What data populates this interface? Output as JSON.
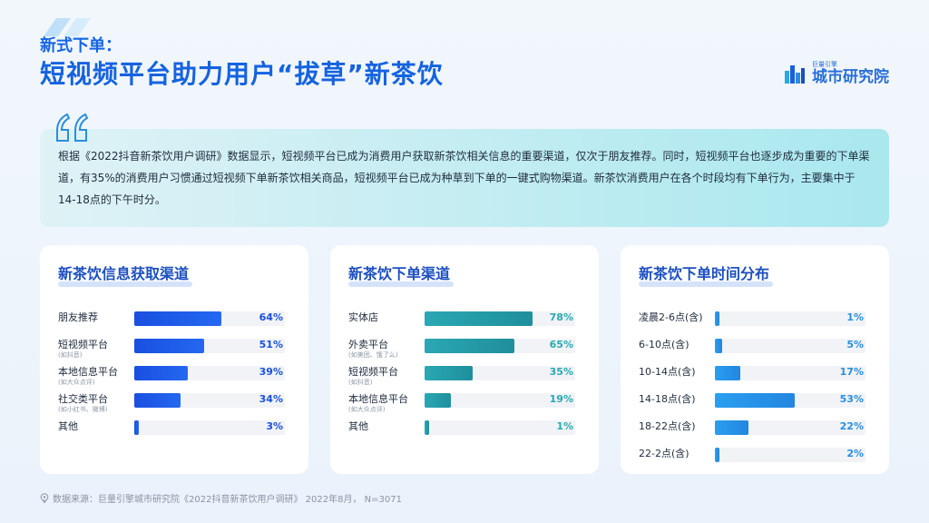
{
  "header": {
    "subtitle": "新式下单：",
    "title": "短视频平台助力用户“拔草”新茶饮"
  },
  "logo": {
    "sub": "巨量引擎",
    "main": "城市研究院"
  },
  "summary": {
    "text": "根据《2022抖音新茶饮用户调研》数据显示，短视频平台已成为消费用户获取新茶饮相关信息的重要渠道，仅次于朋友推荐。同时，短视频平台也逐步成为重要的下单渠道，有35%的消费用户习惯通过短视频下单新茶饮相关商品，短视频平台已成为种草到下单的一键式购物渠道。新茶饮消费用户在各个时段均有下单行为，主要集中于14-18点的下午时分。"
  },
  "colors": {
    "blue": "#1a4fe0",
    "teal": "#2aa8b3",
    "sky": "#2a9ef0",
    "blue_text": "#1a4fe0",
    "teal_text": "#2aa8b3",
    "sky_text": "#2a8ee0"
  },
  "chart_data": [
    {
      "type": "bar",
      "title": "新茶饮信息获取渠道",
      "orientation": "horizontal",
      "unit": "%",
      "xlim": [
        0,
        100
      ],
      "categories": [
        "朋友推荐",
        "短视频平台",
        "本地信息平台",
        "社交类平台",
        "其他"
      ],
      "notes": [
        "",
        "(如抖音)",
        "(如大众点评)",
        "(如小红书、微博)",
        ""
      ],
      "values": [
        64,
        51,
        39,
        34,
        3
      ],
      "labels": [
        "64%",
        "51%",
        "39%",
        "34%",
        "3%"
      ]
    },
    {
      "type": "bar",
      "title": "新茶饮下单渠道",
      "orientation": "horizontal",
      "unit": "%",
      "xlim": [
        0,
        100
      ],
      "categories": [
        "实体店",
        "外卖平台",
        "短视频平台",
        "本地信息平台",
        "其他"
      ],
      "notes": [
        "",
        "(如美团、饿了么)",
        "(如抖音)",
        "(如大众点评)",
        ""
      ],
      "values": [
        78,
        65,
        35,
        19,
        1
      ],
      "labels": [
        "78%",
        "65%",
        "35%",
        "19%",
        "1%"
      ]
    },
    {
      "type": "bar",
      "title": "新茶饮下单时间分布",
      "orientation": "horizontal",
      "unit": "%",
      "xlim": [
        0,
        100
      ],
      "categories": [
        "凌晨2-6点(含)",
        "6-10点(含)",
        "10-14点(含)",
        "14-18点(含)",
        "18-22点(含)",
        "22-2点(含)"
      ],
      "notes": [
        "",
        "",
        "",
        "",
        "",
        ""
      ],
      "values": [
        1,
        5,
        17,
        53,
        22,
        2
      ],
      "labels": [
        "1%",
        "5%",
        "17%",
        "53%",
        "22%",
        "2%"
      ]
    }
  ],
  "footer": {
    "source": "数据来源：巨量引擎城市研究院《2022抖音新茶饮用户调研》 2022年8月， N=3071"
  }
}
